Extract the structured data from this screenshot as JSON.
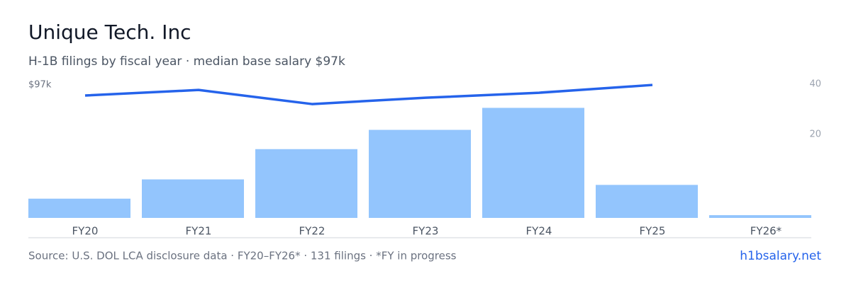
{
  "chart_data": {
    "type": "bar_line",
    "title": "Unique Tech. Inc",
    "subtitle": "H-1B filings by fiscal year · median base salary $97k",
    "top_left_label": "$97k",
    "categories": [
      "FY20",
      "FY21",
      "FY22",
      "FY23",
      "FY24",
      "FY25",
      "FY26*"
    ],
    "series": [
      {
        "color": "#93c5fd",
        "values": [
          7,
          14,
          25,
          32,
          40,
          12,
          1
        ]
      },
      {
        "color": "#2563eb",
        "axis": "y2",
        "values": [
          35.5,
          37.7,
          32.1,
          34.6,
          36.6,
          39.7,
          null
        ]
      }
    ],
    "ylim": [
      0,
      48.6
    ],
    "y2lim": [
      -13.2,
      40
    ],
    "y2ticks": [
      20,
      40
    ],
    "source": "Source: U.S. DOL LCA disclosure data · FY20–FY26* · 131 filings · *FY in progress",
    "brand": "h1bsalary.net"
  }
}
